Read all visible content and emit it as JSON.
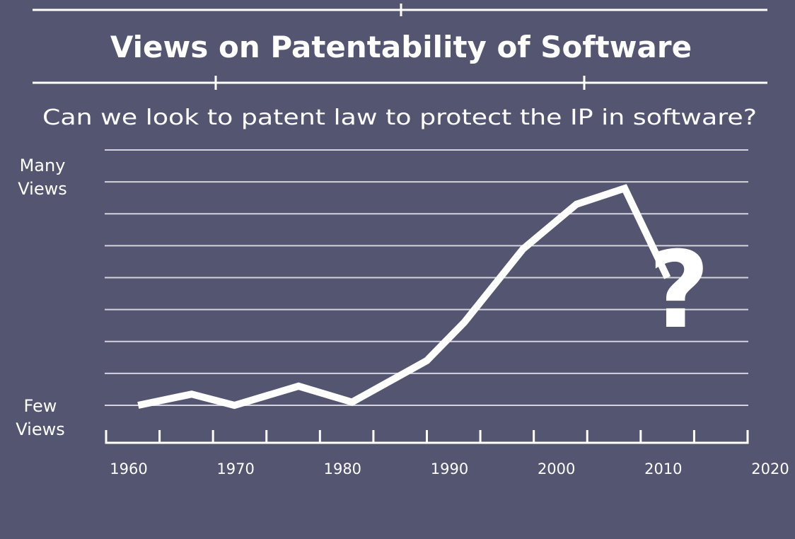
{
  "page": {
    "title": "Views on Patentability of Software",
    "subtitle": "Can we look to patent law to protect the IP in software?",
    "annotation": "?"
  },
  "colors": {
    "background": "#545570",
    "line": "#ffffff",
    "grid": "#d4d4de"
  },
  "chart_data": {
    "type": "line",
    "title": "Views on Patentability of Software",
    "subtitle": "Can we look to patent law to protect the IP in software?",
    "xlabel": "",
    "ylabel": "",
    "x_ticks": [
      "1960",
      "1970",
      "1980",
      "1990",
      "2000",
      "2010",
      "2020"
    ],
    "xlim": [
      1960,
      2020
    ],
    "ylim": [
      0,
      8
    ],
    "y_labels": {
      "high": [
        "Many",
        "Views"
      ],
      "low": [
        "Few",
        "Views"
      ]
    },
    "grid": true,
    "series": [
      {
        "name": "Views",
        "x": [
          1963,
          1968,
          1972,
          1978,
          1983,
          1990,
          1993.5,
          1999,
          2004,
          2008.5,
          2012.5
        ],
        "y": [
          0,
          0.35,
          0,
          0.6,
          0.1,
          1.4,
          2.6,
          4.9,
          6.3,
          6.8,
          4.0
        ]
      }
    ],
    "annotations": [
      {
        "text": "?",
        "x": 2018,
        "y": 3.6
      }
    ]
  }
}
